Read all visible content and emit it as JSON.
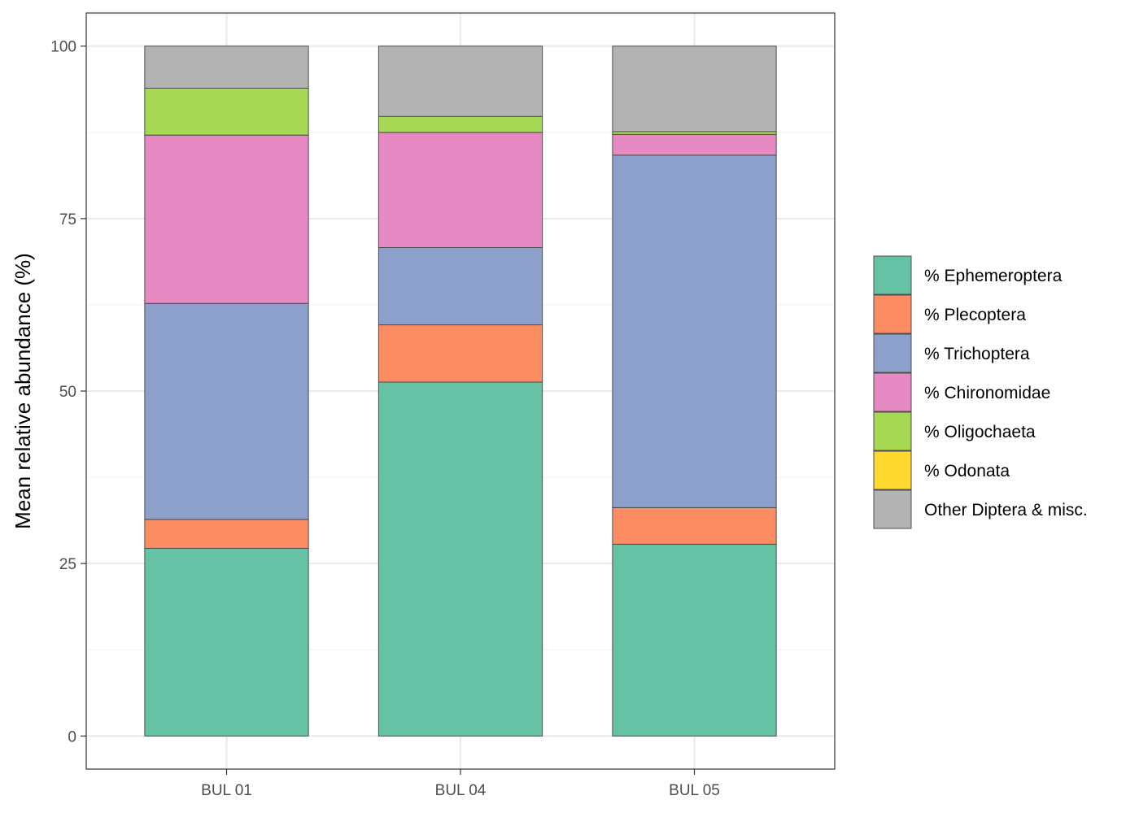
{
  "chart_data": {
    "type": "bar",
    "stacked": true,
    "title": "",
    "xlabel": "",
    "ylabel": "Mean relative abundance (%)",
    "ylim": [
      -4.8,
      104.8
    ],
    "yticks": [
      0,
      25,
      50,
      75,
      100
    ],
    "categories": [
      "BUL 01",
      "BUL 04",
      "BUL 05"
    ],
    "grid": true,
    "legend_position": "right",
    "series": [
      {
        "name": "% Ephemeroptera",
        "color": "#66c2a5",
        "values": [
          27.2,
          51.3,
          27.8
        ]
      },
      {
        "name": "% Plecoptera",
        "color": "#fc8d62",
        "values": [
          4.2,
          8.3,
          5.3
        ]
      },
      {
        "name": "% Trichoptera",
        "color": "#8da0cb",
        "values": [
          31.3,
          11.2,
          51.1
        ]
      },
      {
        "name": "% Chironomidae",
        "color": "#e78ac3",
        "values": [
          24.4,
          16.7,
          3.0
        ]
      },
      {
        "name": "% Oligochaeta",
        "color": "#a6d854",
        "values": [
          6.8,
          2.3,
          0.4
        ]
      },
      {
        "name": "% Odonata",
        "color": "#ffd92f",
        "values": [
          0.0,
          0.0,
          0.0
        ]
      },
      {
        "name": "Other Diptera & misc.",
        "color": "#b3b3b3",
        "values": [
          6.1,
          10.2,
          12.4
        ]
      }
    ]
  }
}
